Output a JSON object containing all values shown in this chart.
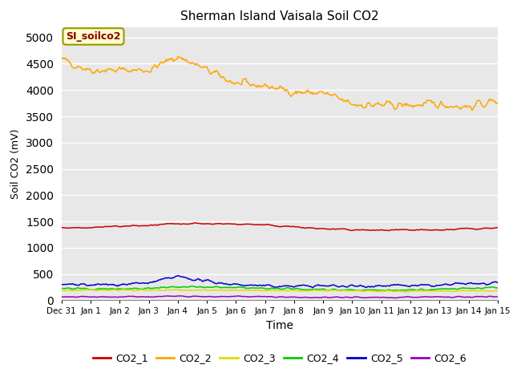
{
  "title": "Sherman Island Vaisala Soil CO2",
  "xlabel": "Time",
  "ylabel": "Soil CO2 (mV)",
  "ylim": [
    0,
    5200
  ],
  "yticks": [
    0,
    500,
    1000,
    1500,
    2000,
    2500,
    3000,
    3500,
    4000,
    4500,
    5000
  ],
  "date_labels": [
    "Dec 31",
    "Jan 1",
    "Jan 2",
    "Jan 3",
    "Jan 4",
    "Jan 5",
    "Jan 6",
    "Jan 7",
    "Jan 8",
    "Jan 9",
    "Jan 10",
    "Jan 11",
    "Jan 12",
    "Jan 13",
    "Jan 14",
    "Jan 15"
  ],
  "legend_label": "SI_soilco2",
  "bg_color": "#e8e8e8",
  "series_colors": {
    "CO2_1": "#cc0000",
    "CO2_2": "#ffa500",
    "CO2_3": "#dddd00",
    "CO2_4": "#00cc00",
    "CO2_5": "#0000cc",
    "CO2_6": "#9900bb"
  },
  "n_points": 500
}
